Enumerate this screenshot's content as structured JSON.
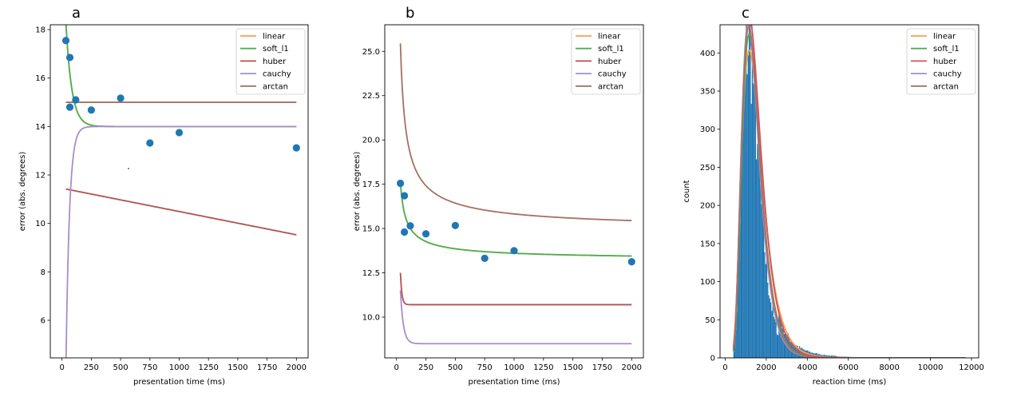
{
  "chart_data": [
    {
      "type": "scatter+line",
      "panel_label": "a",
      "xlabel": "presentation time (ms)",
      "ylabel": "error (abs. degrees)",
      "xlim": [
        -100,
        2100
      ],
      "ylim": [
        4.45,
        18.2
      ],
      "xticks": [
        0,
        250,
        500,
        750,
        1000,
        1250,
        1500,
        1750,
        2000
      ],
      "yticks": [
        6,
        8,
        10,
        12,
        14,
        16,
        18
      ],
      "ytick_decimals": 0,
      "legend": {
        "position": "upper-right",
        "entries": [
          "linear",
          "soft_l1",
          "huber",
          "cauchy",
          "arctan"
        ]
      },
      "scatter": {
        "color": "#1f77b4",
        "points": [
          [
            33,
            17.55
          ],
          [
            67,
            16.85
          ],
          [
            67,
            14.8
          ],
          [
            117,
            15.1
          ],
          [
            250,
            14.68
          ],
          [
            500,
            15.17
          ],
          [
            750,
            13.32
          ],
          [
            1000,
            13.75
          ],
          [
            2000,
            13.12
          ]
        ]
      },
      "series": [
        {
          "name": "linear",
          "color": "#ff9f4a",
          "kind": "exp",
          "a": 14.0,
          "b": 4.3,
          "tau": 50,
          "x0": 33,
          "x1": 2000
        },
        {
          "name": "soft_l1",
          "color": "#4caf50",
          "kind": "exp",
          "a": 14.0,
          "b": 4.3,
          "tau": 50,
          "x0": 33,
          "x1": 2000
        },
        {
          "name": "huber",
          "color": "#b5504b",
          "kind": "linear",
          "y0": 11.42,
          "y1": 9.53,
          "x0": 33,
          "x1": 2000
        },
        {
          "name": "cauchy",
          "color": "#a98cc8",
          "kind": "exp",
          "a": 14.0,
          "b": -10.0,
          "tau": 30,
          "x0": 33,
          "x1": 2000
        },
        {
          "name": "arctan",
          "color": "#a57060",
          "kind": "linear",
          "y0": 15.0,
          "y1": 15.0,
          "x0": 33,
          "x1": 2000
        }
      ]
    },
    {
      "type": "scatter+line",
      "panel_label": "b",
      "xlabel": "presentation time (ms)",
      "ylabel": "error (abs. degrees)",
      "xlim": [
        -100,
        2100
      ],
      "ylim": [
        7.7,
        26.5
      ],
      "xticks": [
        0,
        250,
        500,
        750,
        1000,
        1250,
        1500,
        1750,
        2000
      ],
      "yticks": [
        10.0,
        12.5,
        15.0,
        17.5,
        20.0,
        22.5,
        25.0
      ],
      "ytick_decimals": 1,
      "legend": {
        "position": "upper-right",
        "entries": [
          "linear",
          "soft_l1",
          "huber",
          "cauchy",
          "arctan"
        ]
      },
      "scatter": {
        "color": "#1f77b4",
        "points": [
          [
            33,
            17.55
          ],
          [
            67,
            16.85
          ],
          [
            67,
            14.8
          ],
          [
            117,
            15.15
          ],
          [
            250,
            14.7
          ],
          [
            500,
            15.17
          ],
          [
            750,
            13.32
          ],
          [
            1000,
            13.75
          ],
          [
            2000,
            13.12
          ]
        ]
      },
      "series": [
        {
          "name": "linear",
          "color": "#ff9f4a",
          "kind": "power",
          "a": 13.2,
          "b": 4.4,
          "x0": 33,
          "x1": 2000
        },
        {
          "name": "soft_l1",
          "color": "#4caf50",
          "kind": "power",
          "a": 13.2,
          "b": 4.4,
          "x0": 33,
          "x1": 2000
        },
        {
          "name": "huber",
          "color": "#b5504b",
          "kind": "exp",
          "a": 10.7,
          "b": 1.8,
          "tau": 12,
          "x0": 33,
          "x1": 2000
        },
        {
          "name": "cauchy",
          "color": "#a98cc8",
          "kind": "exp",
          "a": 8.5,
          "b": 3.0,
          "tau": 25,
          "x0": 33,
          "x1": 2000
        },
        {
          "name": "arctan",
          "color": "#a57060",
          "kind": "power",
          "a": 14.85,
          "b": 10.6,
          "x0": 33,
          "x1": 2000
        }
      ]
    },
    {
      "type": "histogram+line",
      "panel_label": "c",
      "xlabel": "reaction time (ms)",
      "ylabel": "count",
      "xlim": [
        -250,
        12350
      ],
      "ylim": [
        0,
        437
      ],
      "xticks": [
        0,
        2000,
        4000,
        6000,
        8000,
        10000,
        12000
      ],
      "yticks": [
        0,
        50,
        100,
        150,
        200,
        250,
        300,
        350,
        400
      ],
      "ytick_decimals": 0,
      "legend": {
        "position": "upper-right",
        "entries": [
          "linear",
          "soft_l1",
          "huber",
          "cauchy",
          "arctan"
        ]
      },
      "histogram": {
        "color": "#1f77b4",
        "bin_width": 50,
        "x_start": 400,
        "x_end": 11700,
        "peak_x": 1300,
        "peak_count": 390
      },
      "series": [
        {
          "name": "linear",
          "color": "#ff9f4a",
          "kind": "lognorm",
          "peak": 370,
          "mode": 1400,
          "sigma": 0.42,
          "x0": 400,
          "x1": 11700
        },
        {
          "name": "soft_l1",
          "color": "#4caf50",
          "kind": "lognorm",
          "peak": 395,
          "mode": 1350,
          "sigma": 0.38,
          "x0": 400,
          "x1": 11700
        },
        {
          "name": "huber",
          "color": "#d6505f",
          "kind": "lognorm",
          "peak": 415,
          "mode": 1370,
          "sigma": 0.4,
          "x0": 400,
          "x1": 11700
        },
        {
          "name": "cauchy",
          "color": "#a98cc8",
          "kind": "lognorm",
          "peak": 410,
          "mode": 1300,
          "sigma": 0.38,
          "x0": 400,
          "x1": 11700
        },
        {
          "name": "arctan",
          "color": "#a57060",
          "kind": "lognorm",
          "peak": 405,
          "mode": 1330,
          "sigma": 0.38,
          "x0": 400,
          "x1": 11700
        }
      ]
    }
  ]
}
